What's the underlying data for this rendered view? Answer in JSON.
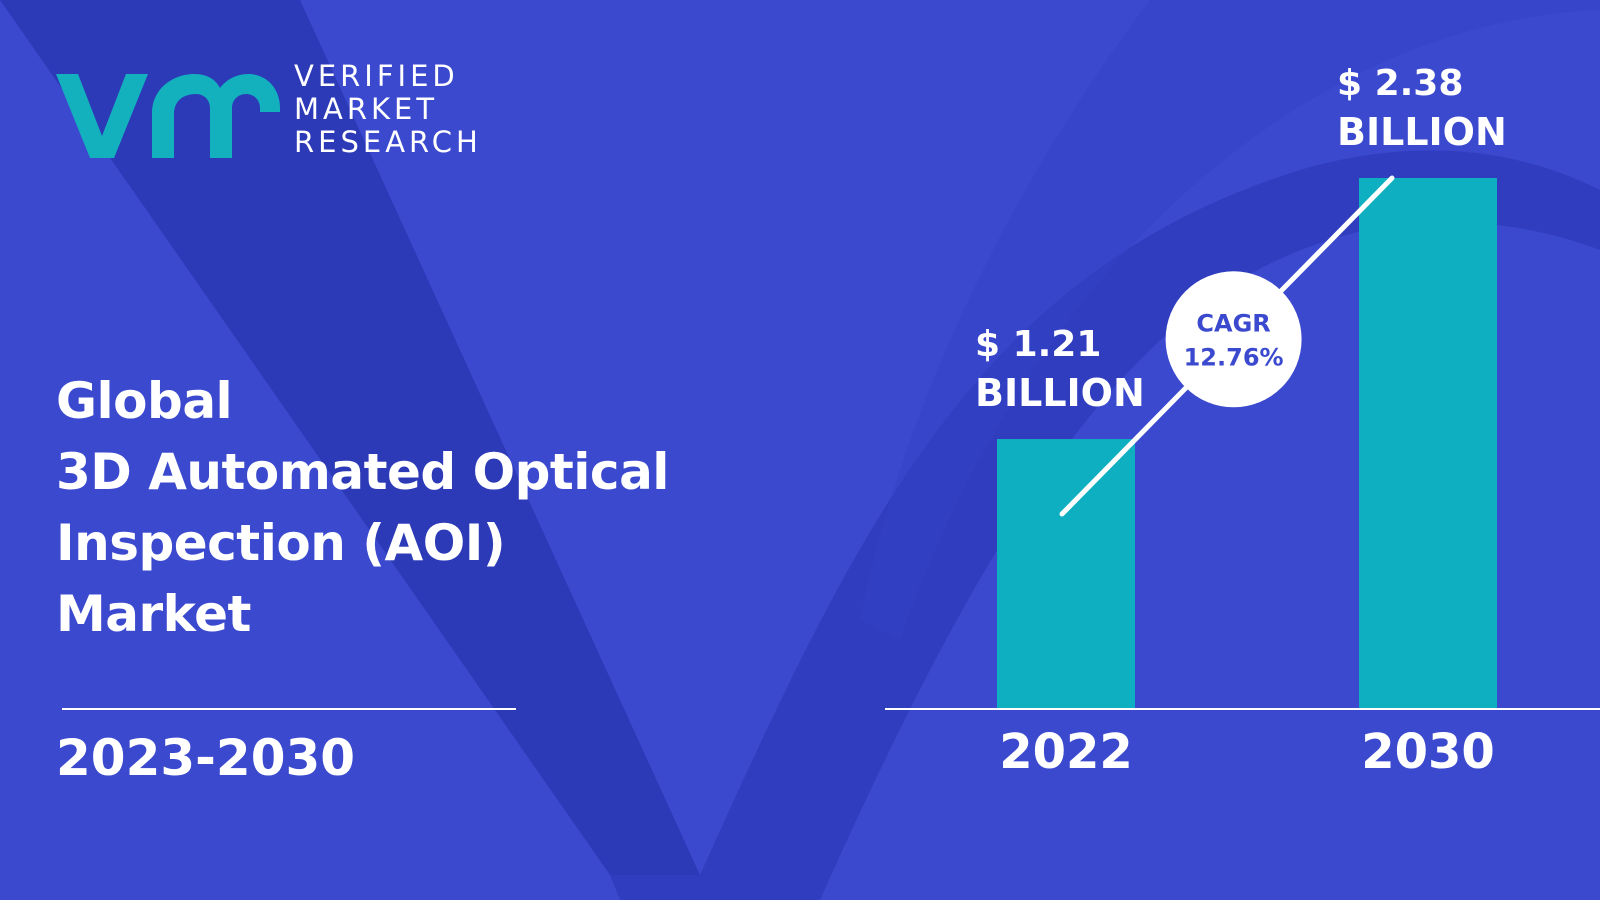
{
  "brand": {
    "name_lines": [
      "VERIFIED",
      "MARKET",
      "RESEARCH"
    ],
    "logo_color": "#13b0bd"
  },
  "title_lines": [
    "Global",
    "3D Automated Optical",
    "Inspection (AOI)",
    "Market"
  ],
  "period": "2023-2030",
  "colors": {
    "background": "#3b49cf",
    "background_shape": "#2c3ab8",
    "bar": "#0eafc0",
    "text": "#ffffff"
  },
  "chart_data": {
    "type": "bar",
    "categories": [
      "2022",
      "2030"
    ],
    "values": [
      1.21,
      2.38
    ],
    "value_labels": [
      [
        "$ 1.21",
        "BILLION"
      ],
      [
        "$ 2.38",
        "BILLION"
      ]
    ],
    "unit": "USD billion",
    "ylim": [
      0,
      2.38
    ],
    "grid": false,
    "legend": "none",
    "annotation": {
      "type": "cagr-trend",
      "lines": [
        "CAGR",
        "12.76%"
      ]
    }
  }
}
